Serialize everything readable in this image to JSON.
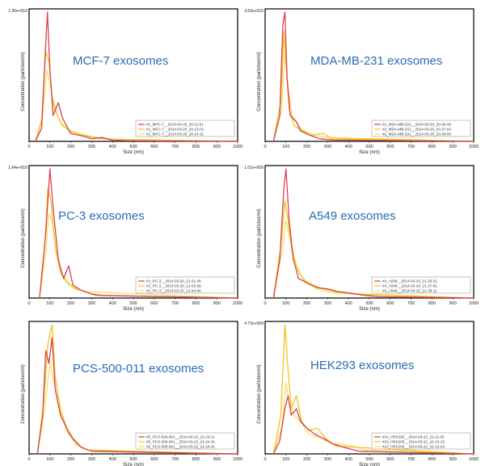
{
  "figure": {
    "x_label": "Size (nm)",
    "y_label": "Concentration (particles/ml)"
  },
  "chart_data": [
    {
      "type": "line",
      "title": "MCF-7 exosomes",
      "y_max_label": "1.36e+010",
      "xlim": [
        0,
        1000
      ],
      "ylim": [
        0,
        1
      ],
      "x_ticks": [
        0,
        100,
        200,
        300,
        400,
        500,
        600,
        700,
        800,
        900,
        1000
      ],
      "series": [
        {
          "name": "#1_MFC-7__2014-03-20_20-11-51",
          "color": "#d9414f",
          "points": [
            [
              30,
              0
            ],
            [
              60,
              0.1
            ],
            [
              75,
              0.6
            ],
            [
              88,
              1.0
            ],
            [
              100,
              0.55
            ],
            [
              115,
              0.2
            ],
            [
              140,
              0.3
            ],
            [
              160,
              0.18
            ],
            [
              200,
              0.06
            ],
            [
              260,
              0.04
            ],
            [
              300,
              0.02
            ],
            [
              350,
              0.03
            ],
            [
              400,
              0.01
            ],
            [
              460,
              0.005
            ],
            [
              1000,
              0
            ]
          ]
        },
        {
          "name": "#1_MFC-7__2014-03-20_20-13-01",
          "color": "#f2c41a",
          "points": [
            [
              30,
              0
            ],
            [
              60,
              0.15
            ],
            [
              80,
              0.7
            ],
            [
              95,
              0.62
            ],
            [
              110,
              0.35
            ],
            [
              135,
              0.2
            ],
            [
              160,
              0.12
            ],
            [
              200,
              0.08
            ],
            [
              260,
              0.05
            ],
            [
              320,
              0.03
            ],
            [
              400,
              0.01
            ],
            [
              1000,
              0
            ]
          ]
        },
        {
          "name": "#1_MFC-7__2014-03-20_20-14-11",
          "color": "#f5e06a",
          "points": [
            [
              30,
              0
            ],
            [
              65,
              0.2
            ],
            [
              85,
              0.55
            ],
            [
              100,
              0.45
            ],
            [
              120,
              0.25
            ],
            [
              150,
              0.15
            ],
            [
              190,
              0.08
            ],
            [
              250,
              0.05
            ],
            [
              330,
              0.02
            ],
            [
              1000,
              0
            ]
          ]
        }
      ]
    },
    {
      "type": "line",
      "title": "MDA-MB-231 exosomes",
      "y_max_label": "3.63e+010",
      "xlim": [
        0,
        1000
      ],
      "ylim": [
        0,
        1
      ],
      "x_ticks": [
        0,
        100,
        200,
        300,
        400,
        500,
        600,
        700,
        800,
        900,
        1000
      ],
      "series": [
        {
          "name": "#2_MDA-MB-231__2014-03-20_20-36-40",
          "color": "#d9414f",
          "points": [
            [
              40,
              0
            ],
            [
              70,
              0.2
            ],
            [
              85,
              0.9
            ],
            [
              95,
              1.0
            ],
            [
              105,
              0.5
            ],
            [
              120,
              0.2
            ],
            [
              150,
              0.15
            ],
            [
              170,
              0.08
            ],
            [
              210,
              0.05
            ],
            [
              260,
              0.02
            ],
            [
              330,
              0.01
            ],
            [
              1000,
              0
            ]
          ]
        },
        {
          "name": "#2_MDA-MB-231__2014-03-20_20-37-50",
          "color": "#f2c41a",
          "points": [
            [
              40,
              0
            ],
            [
              75,
              0.3
            ],
            [
              90,
              0.85
            ],
            [
              100,
              0.6
            ],
            [
              115,
              0.25
            ],
            [
              140,
              0.12
            ],
            [
              180,
              0.08
            ],
            [
              230,
              0.05
            ],
            [
              280,
              0.06
            ],
            [
              320,
              0.02
            ],
            [
              1000,
              0
            ]
          ]
        },
        {
          "name": "#2_MDA-MB-231__2014-03-20_20-39-00",
          "color": "#f5e06a",
          "points": [
            [
              40,
              0
            ],
            [
              80,
              0.25
            ],
            [
              95,
              0.7
            ],
            [
              110,
              0.4
            ],
            [
              130,
              0.2
            ],
            [
              170,
              0.1
            ],
            [
              220,
              0.05
            ],
            [
              300,
              0.03
            ],
            [
              1000,
              0
            ]
          ]
        }
      ]
    },
    {
      "type": "line",
      "title": "PC-3 exosomes",
      "y_max_label": "1.64e+010",
      "xlim": [
        0,
        1000
      ],
      "ylim": [
        0,
        1
      ],
      "x_ticks": [
        0,
        100,
        200,
        300,
        400,
        500,
        600,
        700,
        800,
        900,
        1000
      ],
      "series": [
        {
          "name": "#3_PC-3__2014-03-20_21-01-46",
          "color": "#d9414f",
          "points": [
            [
              50,
              0
            ],
            [
              80,
              0.5
            ],
            [
              100,
              1.0
            ],
            [
              115,
              0.7
            ],
            [
              140,
              0.3
            ],
            [
              165,
              0.15
            ],
            [
              190,
              0.25
            ],
            [
              210,
              0.1
            ],
            [
              250,
              0.06
            ],
            [
              300,
              0.03
            ],
            [
              350,
              0.02
            ],
            [
              1000,
              0
            ]
          ]
        },
        {
          "name": "#3_PC-3__2014-03-20_21-02-56",
          "color": "#f2c41a",
          "points": [
            [
              50,
              0
            ],
            [
              75,
              0.4
            ],
            [
              90,
              0.85
            ],
            [
              105,
              0.75
            ],
            [
              125,
              0.4
            ],
            [
              150,
              0.2
            ],
            [
              180,
              0.12
            ],
            [
              220,
              0.07
            ],
            [
              270,
              0.05
            ],
            [
              320,
              0.02
            ],
            [
              1000,
              0
            ]
          ]
        },
        {
          "name": "#3_PC-3__2014-03-20_21-04-06",
          "color": "#f5e06a",
          "points": [
            [
              50,
              0
            ],
            [
              80,
              0.35
            ],
            [
              95,
              0.65
            ],
            [
              110,
              0.6
            ],
            [
              130,
              0.35
            ],
            [
              160,
              0.18
            ],
            [
              200,
              0.1
            ],
            [
              260,
              0.05
            ],
            [
              1000,
              0
            ]
          ]
        }
      ]
    },
    {
      "type": "line",
      "title": "A549 exosomes",
      "y_max_label": "1.01e+009",
      "xlim": [
        0,
        1000
      ],
      "ylim": [
        0,
        1
      ],
      "x_ticks": [
        0,
        100,
        200,
        300,
        400,
        500,
        600,
        700,
        800,
        900,
        1000
      ],
      "series": [
        {
          "name": "#4_A549__2014-03-20_21-35-51",
          "color": "#d9414f",
          "points": [
            [
              40,
              0
            ],
            [
              70,
              0.3
            ],
            [
              90,
              0.85
            ],
            [
              100,
              1.0
            ],
            [
              115,
              0.6
            ],
            [
              135,
              0.3
            ],
            [
              160,
              0.15
            ],
            [
              200,
              0.12
            ],
            [
              250,
              0.08
            ],
            [
              300,
              0.07
            ],
            [
              350,
              0.05
            ],
            [
              400,
              0.04
            ],
            [
              480,
              0.02
            ],
            [
              550,
              0.01
            ],
            [
              1000,
              0
            ]
          ]
        },
        {
          "name": "#4_A549__2014-03-20_21-37-01",
          "color": "#f2c41a",
          "points": [
            [
              40,
              0
            ],
            [
              75,
              0.4
            ],
            [
              95,
              0.75
            ],
            [
              110,
              0.6
            ],
            [
              130,
              0.35
            ],
            [
              160,
              0.2
            ],
            [
              200,
              0.12
            ],
            [
              260,
              0.08
            ],
            [
              330,
              0.05
            ],
            [
              420,
              0.03
            ],
            [
              1000,
              0
            ]
          ]
        },
        {
          "name": "#4_A549__2014-03-20_21-38-11",
          "color": "#f5e06a",
          "points": [
            [
              40,
              0
            ],
            [
              80,
              0.35
            ],
            [
              100,
              0.6
            ],
            [
              120,
              0.45
            ],
            [
              150,
              0.25
            ],
            [
              190,
              0.12
            ],
            [
              250,
              0.07
            ],
            [
              320,
              0.04
            ],
            [
              1000,
              0
            ]
          ]
        }
      ]
    },
    {
      "type": "line",
      "title": "PCS-500-011 exosomes",
      "y_max_label": "",
      "xlim": [
        0,
        1000
      ],
      "ylim": [
        0,
        1
      ],
      "x_ticks": [
        0,
        100,
        200,
        300,
        400,
        500,
        600,
        700,
        800,
        900,
        1000
      ],
      "series": [
        {
          "name": "#5_PCS-500-001__2014-03-22_21-23-21",
          "color": "#d9414f",
          "points": [
            [
              40,
              0
            ],
            [
              65,
              0.3
            ],
            [
              80,
              0.8
            ],
            [
              95,
              0.7
            ],
            [
              110,
              0.9
            ],
            [
              125,
              0.5
            ],
            [
              150,
              0.3
            ],
            [
              180,
              0.2
            ],
            [
              210,
              0.12
            ],
            [
              250,
              0.05
            ],
            [
              300,
              0.02
            ],
            [
              1000,
              0
            ]
          ]
        },
        {
          "name": "#5_PCS-500-001__2014-03-22_21-24-31",
          "color": "#f2c41a",
          "points": [
            [
              40,
              0
            ],
            [
              70,
              0.4
            ],
            [
              90,
              0.85
            ],
            [
              110,
              1.0
            ],
            [
              125,
              0.6
            ],
            [
              150,
              0.35
            ],
            [
              190,
              0.15
            ],
            [
              230,
              0.07
            ],
            [
              280,
              0.03
            ],
            [
              1000,
              0
            ]
          ]
        },
        {
          "name": "#5_PCS-500-001__2014-03-22_21-25-41",
          "color": "#f5e06a",
          "points": [
            [
              40,
              0
            ],
            [
              75,
              0.35
            ],
            [
              100,
              0.7
            ],
            [
              120,
              0.55
            ],
            [
              145,
              0.35
            ],
            [
              180,
              0.18
            ],
            [
              230,
              0.07
            ],
            [
              300,
              0.02
            ],
            [
              1000,
              0
            ]
          ]
        }
      ]
    },
    {
      "type": "line",
      "title": "HEK293 exosomes",
      "y_max_label": "4.73e+009",
      "xlim": [
        0,
        1000
      ],
      "ylim": [
        0,
        1
      ],
      "x_ticks": [
        0,
        100,
        200,
        300,
        400,
        500,
        600,
        700,
        800,
        900,
        1000
      ],
      "series": [
        {
          "name": "#10_HEK293__2014-03-22_22-11-05",
          "color": "#d9414f",
          "points": [
            [
              40,
              0
            ],
            [
              70,
              0.1
            ],
            [
              95,
              0.35
            ],
            [
              110,
              0.45
            ],
            [
              125,
              0.3
            ],
            [
              150,
              0.35
            ],
            [
              170,
              0.25
            ],
            [
              200,
              0.2
            ],
            [
              240,
              0.15
            ],
            [
              280,
              0.12
            ],
            [
              320,
              0.08
            ],
            [
              380,
              0.05
            ],
            [
              450,
              0.02
            ],
            [
              1000,
              0
            ]
          ]
        },
        {
          "name": "#10_HEK293__2014-03-22_22-13-15",
          "color": "#f2c41a",
          "points": [
            [
              40,
              0
            ],
            [
              75,
              0.3
            ],
            [
              95,
              1.0
            ],
            [
              110,
              0.65
            ],
            [
              125,
              0.35
            ],
            [
              150,
              0.45
            ],
            [
              175,
              0.25
            ],
            [
              210,
              0.18
            ],
            [
              250,
              0.2
            ],
            [
              290,
              0.12
            ],
            [
              340,
              0.06
            ],
            [
              1000,
              0
            ]
          ]
        },
        {
          "name": "#10_HEK293__2014-03-22_22-15-24",
          "color": "#f5e06a",
          "points": [
            [
              40,
              0
            ],
            [
              80,
              0.2
            ],
            [
              100,
              0.55
            ],
            [
              115,
              0.4
            ],
            [
              140,
              0.3
            ],
            [
              170,
              0.25
            ],
            [
              210,
              0.15
            ],
            [
              260,
              0.12
            ],
            [
              330,
              0.08
            ],
            [
              420,
              0.06
            ],
            [
              480,
              0.03
            ],
            [
              1000,
              0
            ]
          ]
        }
      ]
    }
  ]
}
